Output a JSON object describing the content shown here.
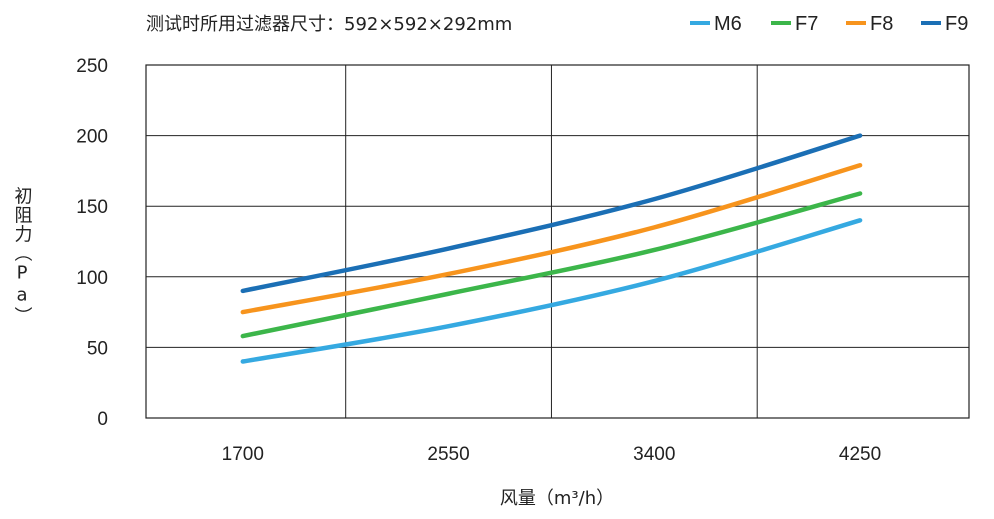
{
  "chart_data": {
    "type": "line",
    "title": "测试时所用过滤器尺寸：592×592×292mm",
    "xlabel": "风量（m³/h）",
    "ylabel": "初阻力（Pa）",
    "categories": [
      "1700",
      "2550",
      "3400",
      "4250"
    ],
    "x": [
      1700,
      2550,
      3400,
      4250
    ],
    "x_ticks": [
      1700,
      2550,
      3400,
      4250
    ],
    "xlim": [
      1300,
      4700
    ],
    "y_ticks": [
      0,
      50,
      100,
      150,
      200,
      250
    ],
    "ylim": [
      0,
      250
    ],
    "grid": true,
    "legend_position": "top-right",
    "series": [
      {
        "name": "M6",
        "color": "#35a9e1",
        "values": [
          40,
          65,
          97,
          140
        ]
      },
      {
        "name": "F7",
        "color": "#3cb64a",
        "values": [
          58,
          88,
          119,
          159
        ]
      },
      {
        "name": "F8",
        "color": "#f7941d",
        "values": [
          75,
          102,
          135,
          179
        ]
      },
      {
        "name": "F9",
        "color": "#1b6fb5",
        "values": [
          90,
          120,
          155,
          200
        ]
      }
    ]
  }
}
